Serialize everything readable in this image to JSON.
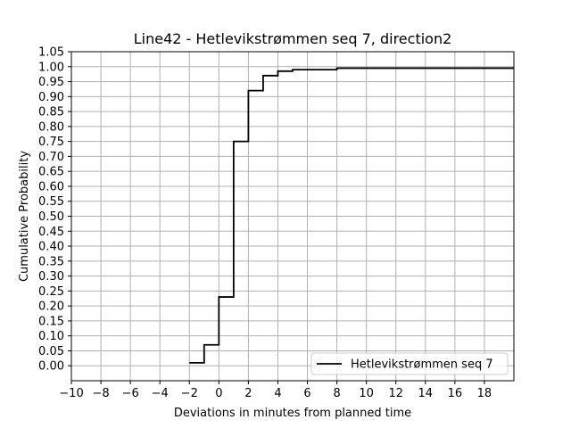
{
  "chart_data": {
    "type": "line",
    "step": "post",
    "title": "Line42 - Hetlevikstrømmen seq 7, direction2",
    "xlabel": "Deviations in minutes from planned time",
    "ylabel": "Cumulative Probability",
    "xlim": [
      -10,
      20
    ],
    "ylim": [
      -0.05,
      1.05
    ],
    "x_ticks": [
      -10,
      -8,
      -6,
      -4,
      -2,
      0,
      2,
      4,
      6,
      8,
      10,
      12,
      14,
      16,
      18
    ],
    "x_tick_labels": [
      "−10",
      "−8",
      "−6",
      "−4",
      "−2",
      "0",
      "2",
      "4",
      "6",
      "8",
      "10",
      "12",
      "14",
      "16",
      "18"
    ],
    "y_ticks": [
      0.0,
      0.05,
      0.1,
      0.15,
      0.2,
      0.25,
      0.3,
      0.35,
      0.4,
      0.45,
      0.5,
      0.55,
      0.6,
      0.65,
      0.7,
      0.75,
      0.8,
      0.85,
      0.9,
      0.95,
      1.0,
      1.05
    ],
    "y_tick_labels": [
      "0.00",
      "0.05",
      "0.10",
      "0.15",
      "0.20",
      "0.25",
      "0.30",
      "0.35",
      "0.40",
      "0.45",
      "0.50",
      "0.55",
      "0.60",
      "0.65",
      "0.70",
      "0.75",
      "0.80",
      "0.85",
      "0.90",
      "0.95",
      "1.00",
      "1.05"
    ],
    "grid": true,
    "legend_position": "lower-right",
    "series": [
      {
        "name": "Hetlevikstrømmen seq 7",
        "color": "#000000",
        "x": [
          -2,
          -1,
          0,
          1,
          2,
          3,
          4,
          5,
          8,
          20
        ],
        "y": [
          0.01,
          0.07,
          0.23,
          0.75,
          0.92,
          0.97,
          0.985,
          0.99,
          0.995,
          0.995
        ]
      }
    ]
  }
}
